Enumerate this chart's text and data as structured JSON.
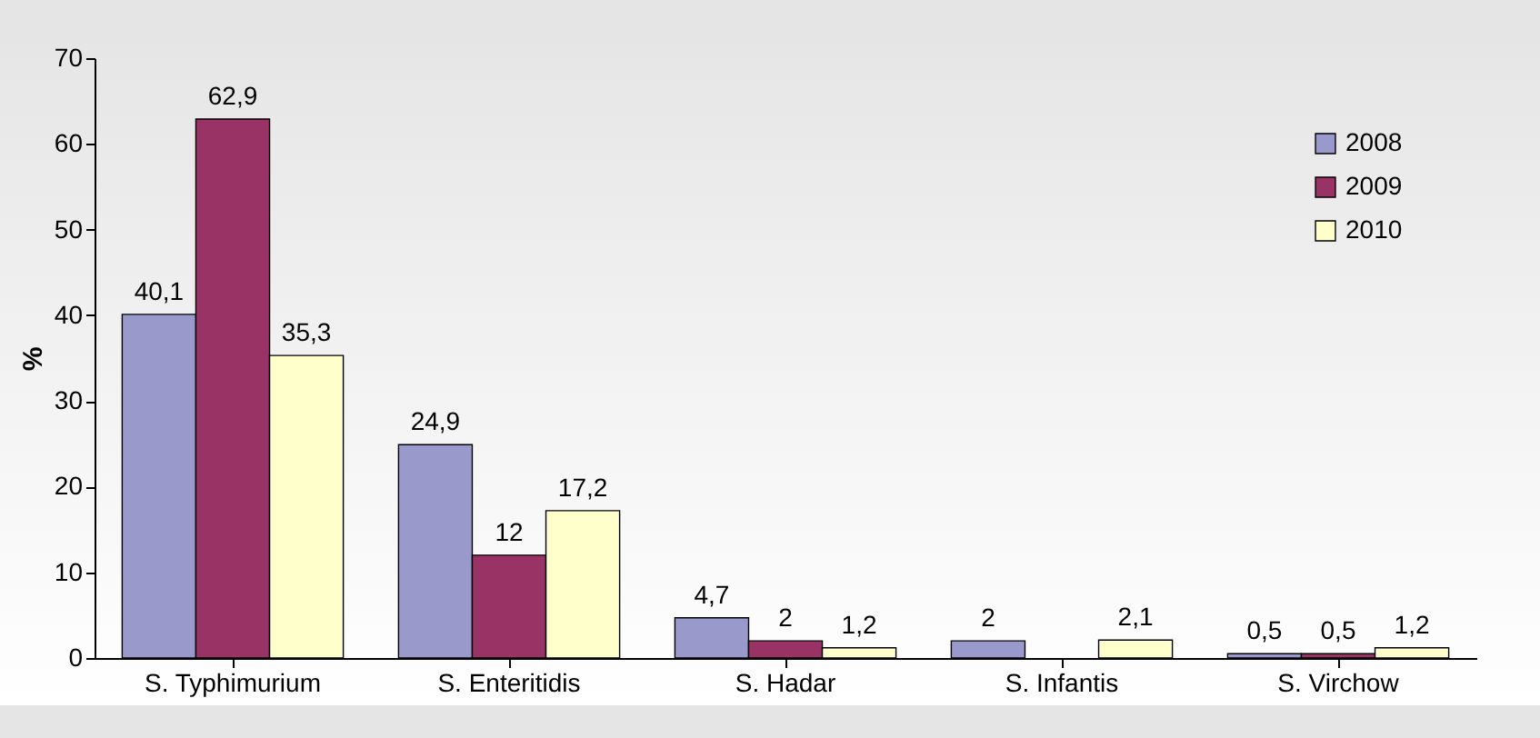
{
  "chart_data": {
    "type": "bar",
    "ylabel": "%",
    "categories": [
      "S. Typhimurium",
      "S. Enteritidis",
      "S. Hadar",
      "S. Infantis",
      "S. Virchow"
    ],
    "series": [
      {
        "name": "2008",
        "color": "#9999cc",
        "values": [
          40.1,
          24.9,
          4.7,
          2,
          0.5
        ],
        "value_labels": [
          "40,1",
          "24,9",
          "4,7",
          "2",
          "0,5"
        ]
      },
      {
        "name": "2009",
        "color": "#993366",
        "values": [
          62.9,
          12,
          2,
          null,
          0.5
        ],
        "value_labels": [
          "62,9",
          "12",
          "2",
          null,
          "0,5"
        ]
      },
      {
        "name": "2010",
        "color": "#ffffcc",
        "values": [
          35.3,
          17.2,
          1.2,
          2.1,
          1.2
        ],
        "value_labels": [
          "35,3",
          "17,2",
          "1,2",
          "2,1",
          "1,2"
        ]
      }
    ],
    "ylim": [
      0,
      70
    ],
    "yticks": [
      0,
      10,
      20,
      30,
      40,
      50,
      60,
      70
    ],
    "grid": false,
    "legend": "top right"
  }
}
